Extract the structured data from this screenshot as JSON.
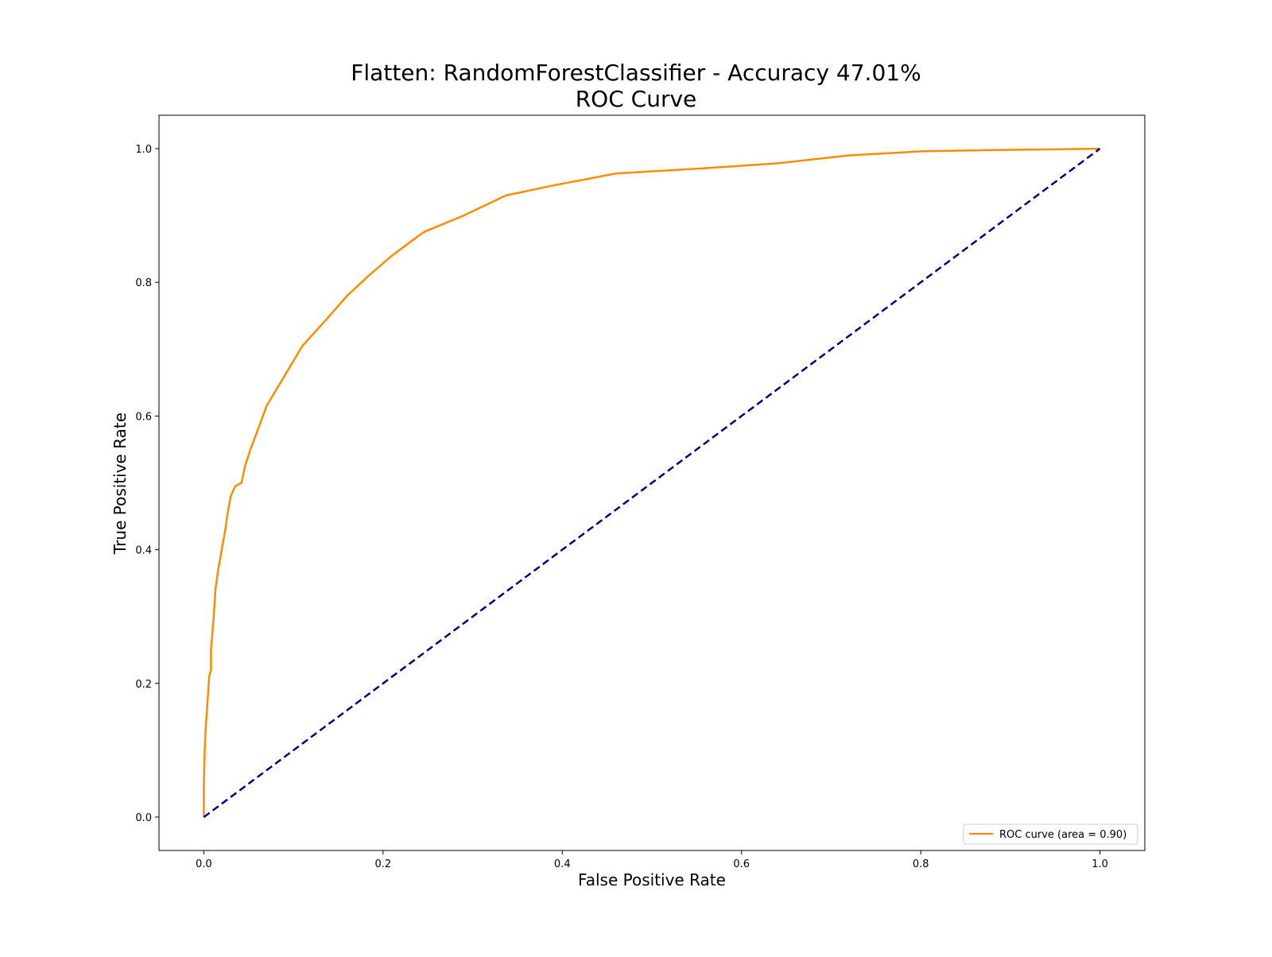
{
  "chart_data": {
    "type": "line",
    "title_line1": "Flatten: RandomForestClassifier - Accuracy 47.01%",
    "title_line2": "ROC Curve",
    "xlabel": "False Positive Rate",
    "ylabel": "True Positive Rate",
    "xlim": [
      -0.05,
      1.05
    ],
    "ylim": [
      -0.05,
      1.05
    ],
    "xticks": [
      0.0,
      0.2,
      0.4,
      0.6,
      0.8,
      1.0
    ],
    "yticks": [
      0.0,
      0.2,
      0.4,
      0.6,
      0.8,
      1.0
    ],
    "xtick_labels": [
      "0.0",
      "0.2",
      "0.4",
      "0.6",
      "0.8",
      "1.0"
    ],
    "ytick_labels": [
      "0.0",
      "0.2",
      "0.4",
      "0.6",
      "0.8",
      "1.0"
    ],
    "grid": false,
    "legend_placement": "lower-right",
    "series": [
      {
        "name": "ROC curve (area = 0.90)",
        "color": "#ff8c00",
        "style": "solid",
        "x": [
          0.0,
          0.0,
          0.001,
          0.002,
          0.004,
          0.006,
          0.008,
          0.008,
          0.011,
          0.013,
          0.016,
          0.02,
          0.024,
          0.026,
          0.03,
          0.035,
          0.042,
          0.046,
          0.052,
          0.059,
          0.07,
          0.09,
          0.11,
          0.137,
          0.16,
          0.184,
          0.21,
          0.245,
          0.29,
          0.337,
          0.39,
          0.46,
          0.55,
          0.64,
          0.72,
          0.8,
          0.88,
          0.95,
          1.0
        ],
        "y": [
          0.0,
          0.05,
          0.1,
          0.13,
          0.17,
          0.21,
          0.22,
          0.25,
          0.3,
          0.34,
          0.37,
          0.4,
          0.43,
          0.45,
          0.48,
          0.495,
          0.5,
          0.525,
          0.55,
          0.575,
          0.615,
          0.66,
          0.705,
          0.745,
          0.78,
          0.81,
          0.84,
          0.875,
          0.9,
          0.93,
          0.945,
          0.963,
          0.97,
          0.978,
          0.99,
          0.996,
          0.998,
          0.999,
          1.0
        ]
      },
      {
        "name": "",
        "color": "#000080",
        "style": "dashed",
        "x": [
          0.0,
          1.0
        ],
        "y": [
          0.0,
          1.0
        ]
      }
    ],
    "legend_label": "ROC curve (area = 0.90)"
  }
}
